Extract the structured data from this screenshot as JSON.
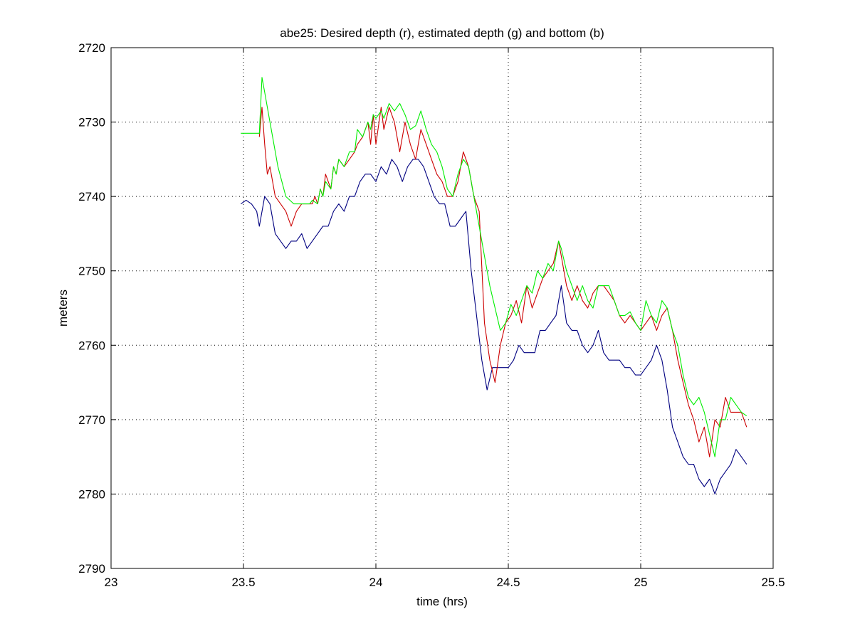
{
  "chart_data": {
    "type": "line",
    "title": "abe25: Desired depth (r), estimated depth (g) and bottom (b)",
    "xlabel": "time (hrs)",
    "ylabel": "meters",
    "xlim": [
      23,
      25.5
    ],
    "ylim": [
      2720,
      2790
    ],
    "y_reversed": true,
    "grid": true,
    "legend": "none",
    "xticks": [
      23,
      23.5,
      24,
      24.5,
      25,
      25.5
    ],
    "xtick_labels": [
      "23",
      "23.5",
      "24",
      "24.5",
      "25",
      "25.5"
    ],
    "yticks": [
      2720,
      2730,
      2740,
      2750,
      2760,
      2770,
      2780,
      2790
    ],
    "ytick_labels": [
      "2720",
      "2730",
      "2740",
      "2750",
      "2760",
      "2770",
      "2780",
      "2790"
    ],
    "series": [
      {
        "color": "#00ee00",
        "x": [
          23.49,
          23.56,
          23.57,
          23.58,
          23.6,
          23.63,
          23.66,
          23.69,
          23.71,
          23.73,
          23.75,
          23.76,
          23.78,
          23.79,
          23.8,
          23.81,
          23.83,
          23.84,
          23.85,
          23.86,
          23.88,
          23.9,
          23.92,
          23.93,
          23.95,
          23.97,
          23.98,
          23.99,
          24.0,
          24.02,
          24.03,
          24.05,
          24.07,
          24.09,
          24.11,
          24.13,
          24.15,
          24.17,
          24.19,
          24.21,
          24.23,
          24.25,
          24.27,
          24.29,
          24.31,
          24.33,
          24.35,
          24.37,
          24.39,
          24.41,
          24.43,
          24.45,
          24.47,
          24.49,
          24.51,
          24.53,
          24.55,
          24.57,
          24.59,
          24.61,
          24.63,
          24.65,
          24.67,
          24.69,
          24.7,
          24.72,
          24.74,
          24.76,
          24.78,
          24.8,
          24.82,
          24.84,
          24.86,
          24.88,
          24.9,
          24.92,
          24.94,
          24.96,
          24.98,
          25.0,
          25.02,
          25.04,
          25.06,
          25.08,
          25.1,
          25.12,
          25.14,
          25.16,
          25.18,
          25.2,
          25.22,
          25.24,
          25.26,
          25.28,
          25.3,
          25.32,
          25.34,
          25.36,
          25.38,
          25.4
        ],
        "y": [
          2731.5,
          2731.5,
          2724,
          2726,
          2730,
          2736,
          2740,
          2741,
          2741,
          2741,
          2741,
          2740.5,
          2741,
          2739,
          2740,
          2738,
          2739,
          2736,
          2737,
          2735,
          2736,
          2734,
          2734,
          2731,
          2732,
          2730,
          2731,
          2729,
          2729.5,
          2728.5,
          2729.5,
          2727.5,
          2728.5,
          2727.5,
          2729,
          2731,
          2730.5,
          2728.5,
          2731,
          2733,
          2734,
          2736,
          2739,
          2740,
          2737,
          2735,
          2736,
          2740,
          2744,
          2748,
          2752,
          2755,
          2758,
          2757,
          2754.5,
          2756,
          2754,
          2752,
          2753,
          2750,
          2751,
          2749,
          2750,
          2746,
          2747,
          2750,
          2752,
          2754,
          2752,
          2754,
          2755,
          2752,
          2752,
          2752,
          2754,
          2756,
          2756,
          2755.5,
          2757,
          2758,
          2754,
          2756,
          2757,
          2754,
          2755,
          2758,
          2760,
          2764,
          2767,
          2768,
          2767,
          2769,
          2772,
          2775,
          2770,
          2770,
          2767,
          2768,
          2769,
          2769.5
        ]
      },
      {
        "color": "#cc0000",
        "x": [
          23.56,
          23.57,
          23.58,
          23.59,
          23.6,
          23.62,
          23.64,
          23.66,
          23.67,
          23.68,
          23.7,
          23.72,
          23.74,
          23.76,
          23.77,
          23.78,
          23.79,
          23.8,
          23.81,
          23.83,
          23.84,
          23.85,
          23.86,
          23.88,
          23.9,
          23.92,
          23.93,
          23.95,
          23.97,
          23.98,
          23.99,
          24.0,
          24.02,
          24.03,
          24.05,
          24.07,
          24.09,
          24.11,
          24.13,
          24.15,
          24.17,
          24.19,
          24.21,
          24.23,
          24.25,
          24.27,
          24.29,
          24.31,
          24.33,
          24.35,
          24.37,
          24.39,
          24.41,
          24.43,
          24.45,
          24.47,
          24.49,
          24.51,
          24.53,
          24.55,
          24.57,
          24.59,
          24.61,
          24.63,
          24.65,
          24.67,
          24.69,
          24.7,
          24.72,
          24.74,
          24.76,
          24.78,
          24.8,
          24.82,
          24.84,
          24.86,
          24.88,
          24.9,
          24.92,
          24.94,
          24.96,
          24.98,
          25.0,
          25.02,
          25.04,
          25.06,
          25.08,
          25.1,
          25.12,
          25.14,
          25.16,
          25.18,
          25.2,
          25.22,
          25.24,
          25.26,
          25.28,
          25.3,
          25.32,
          25.34,
          25.36,
          25.38,
          25.4
        ],
        "y": [
          2732,
          2728,
          2733,
          2737,
          2736,
          2740,
          2741,
          2742,
          2743,
          2744,
          2742,
          2741,
          2741,
          2741,
          2740,
          2741,
          2739,
          2740,
          2737,
          2739,
          2736,
          2737,
          2735,
          2736,
          2735,
          2734,
          2733,
          2732,
          2730,
          2733,
          2729,
          2733,
          2728,
          2731,
          2728,
          2730,
          2734,
          2730,
          2733,
          2735,
          2731,
          2733,
          2735,
          2737,
          2738,
          2740,
          2740,
          2738,
          2734,
          2736,
          2740,
          2742,
          2757,
          2762,
          2765,
          2760,
          2757,
          2756,
          2754,
          2757,
          2752,
          2755,
          2753,
          2751,
          2750,
          2749,
          2746,
          2748,
          2752,
          2754,
          2752,
          2754,
          2755,
          2753,
          2752,
          2752,
          2753,
          2754,
          2756,
          2757,
          2756,
          2757,
          2758,
          2757,
          2756,
          2758,
          2756,
          2755,
          2758,
          2762,
          2765,
          2768,
          2770,
          2773,
          2771,
          2775,
          2770,
          2771,
          2767,
          2769,
          2769,
          2769,
          2771
        ]
      },
      {
        "color": "#000080",
        "x": [
          23.49,
          23.51,
          23.53,
          23.55,
          23.56,
          23.58,
          23.6,
          23.62,
          23.64,
          23.66,
          23.68,
          23.7,
          23.72,
          23.74,
          23.76,
          23.78,
          23.8,
          23.82,
          23.84,
          23.86,
          23.88,
          23.9,
          23.92,
          23.94,
          23.96,
          23.98,
          24.0,
          24.02,
          24.04,
          24.06,
          24.08,
          24.1,
          24.12,
          24.14,
          24.16,
          24.18,
          24.2,
          24.22,
          24.24,
          24.26,
          24.28,
          24.3,
          24.32,
          24.34,
          24.36,
          24.38,
          24.4,
          24.42,
          24.44,
          24.46,
          24.48,
          24.5,
          24.52,
          24.54,
          24.56,
          24.58,
          24.6,
          24.62,
          24.64,
          24.66,
          24.68,
          24.7,
          24.72,
          24.74,
          24.76,
          24.78,
          24.8,
          24.82,
          24.84,
          24.86,
          24.88,
          24.9,
          24.92,
          24.94,
          24.96,
          24.98,
          25.0,
          25.02,
          25.04,
          25.06,
          25.08,
          25.1,
          25.12,
          25.14,
          25.16,
          25.18,
          25.2,
          25.22,
          25.24,
          25.26,
          25.28,
          25.3,
          25.32,
          25.34,
          25.36,
          25.38,
          25.4
        ],
        "y": [
          2741,
          2740.5,
          2741,
          2742,
          2744,
          2740,
          2741,
          2745,
          2746,
          2747,
          2746,
          2746,
          2745,
          2747,
          2746,
          2745,
          2744,
          2744,
          2742,
          2741,
          2742,
          2740,
          2740,
          2738,
          2737,
          2737,
          2738,
          2736,
          2737,
          2735,
          2736,
          2738,
          2736,
          2735,
          2735,
          2736,
          2738,
          2740,
          2741,
          2741,
          2744,
          2744,
          2743,
          2742,
          2750,
          2756,
          2762,
          2766,
          2763,
          2763,
          2763,
          2763,
          2762,
          2760,
          2761,
          2761,
          2761,
          2758,
          2758,
          2757,
          2756,
          2752,
          2757,
          2758,
          2758,
          2760,
          2761,
          2760,
          2758,
          2761,
          2762,
          2762,
          2762,
          2763,
          2763,
          2764,
          2764,
          2763,
          2762,
          2760,
          2762,
          2766,
          2771,
          2773,
          2775,
          2776,
          2776,
          2778,
          2779,
          2778,
          2780,
          2778,
          2777,
          2776,
          2774,
          2775,
          2776
        ]
      }
    ]
  }
}
